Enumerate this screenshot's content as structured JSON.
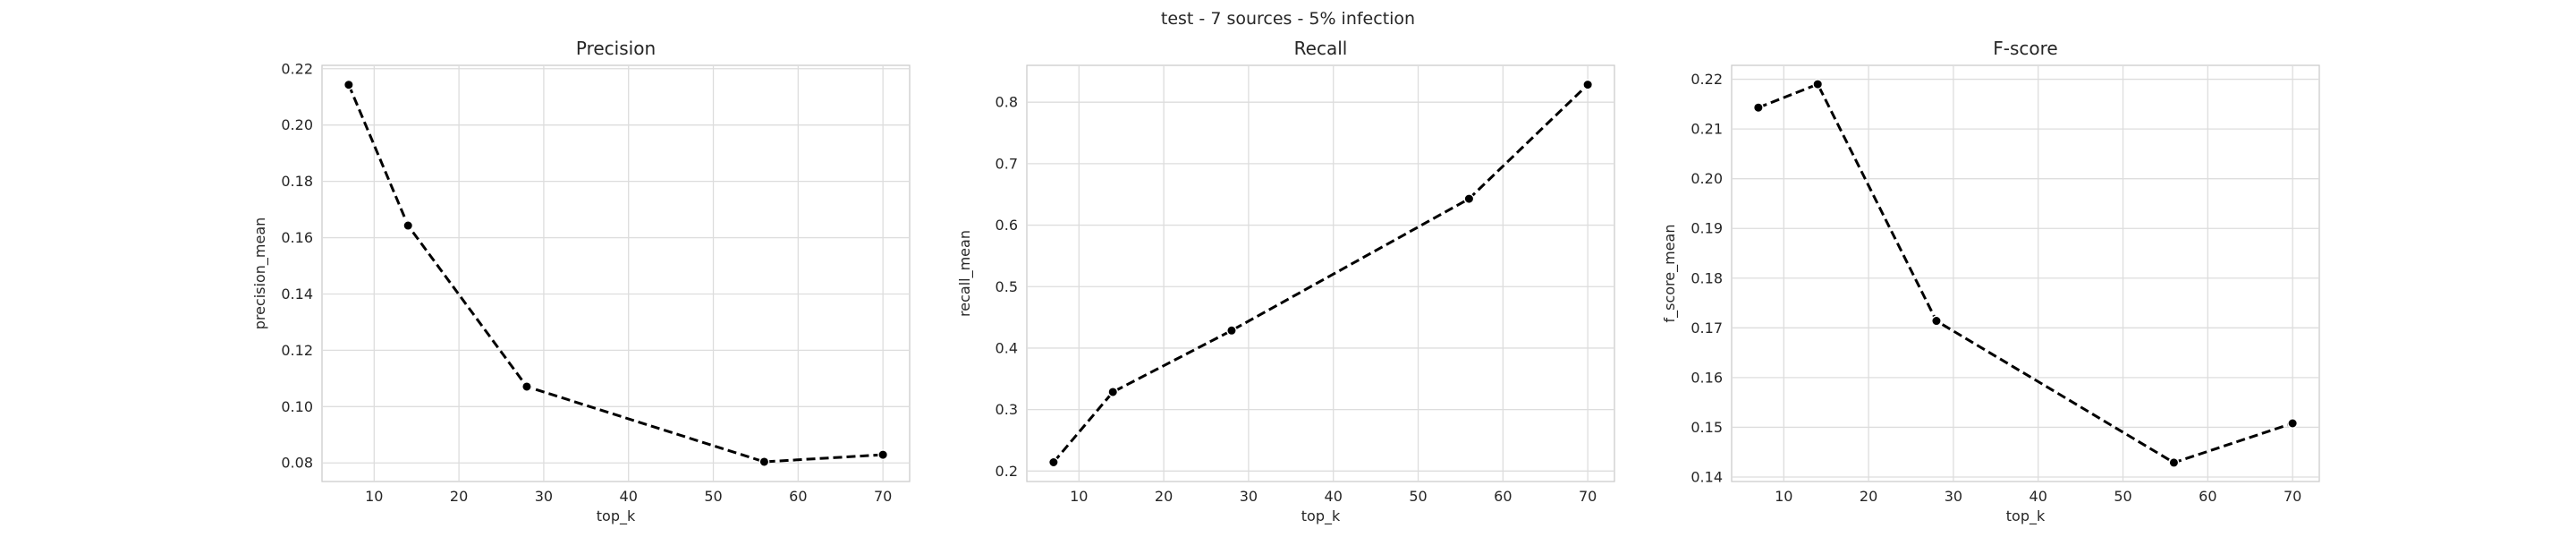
{
  "figure": {
    "suptitle": "test - 7 sources - 5% infection"
  },
  "chart_data": [
    {
      "type": "line",
      "title": "Precision",
      "xlabel": "top_k",
      "ylabel": "precision_mean",
      "x": [
        7,
        14,
        28,
        56,
        70
      ],
      "values": [
        0.2143,
        0.1643,
        0.1071,
        0.0804,
        0.0829
      ],
      "xlim": [
        3.85,
        73.15
      ],
      "ylim": [
        0.0734,
        0.2212
      ],
      "xticks": [
        10,
        20,
        30,
        40,
        50,
        60,
        70
      ],
      "yticks": [
        0.08,
        0.1,
        0.12,
        0.14,
        0.16,
        0.18,
        0.2,
        0.22
      ],
      "xtick_labels": [
        "10",
        "20",
        "30",
        "40",
        "50",
        "60",
        "70"
      ],
      "ytick_labels": [
        "0.08",
        "0.10",
        "0.12",
        "0.14",
        "0.16",
        "0.18",
        "0.20",
        "0.22"
      ],
      "grid": true,
      "line_style": "dashed",
      "line_color": "#000000",
      "marker": "circle"
    },
    {
      "type": "line",
      "title": "Recall",
      "xlabel": "top_k",
      "ylabel": "recall_mean",
      "x": [
        7,
        14,
        28,
        56,
        70
      ],
      "values": [
        0.2143,
        0.3286,
        0.4286,
        0.6429,
        0.8286
      ],
      "xlim": [
        3.85,
        73.15
      ],
      "ylim": [
        0.183,
        0.86
      ],
      "xticks": [
        10,
        20,
        30,
        40,
        50,
        60,
        70
      ],
      "yticks": [
        0.2,
        0.3,
        0.4,
        0.5,
        0.6,
        0.7,
        0.8
      ],
      "xtick_labels": [
        "10",
        "20",
        "30",
        "40",
        "50",
        "60",
        "70"
      ],
      "ytick_labels": [
        "0.2",
        "0.3",
        "0.4",
        "0.5",
        "0.6",
        "0.7",
        "0.8"
      ],
      "grid": true,
      "line_style": "dashed",
      "line_color": "#000000",
      "marker": "circle"
    },
    {
      "type": "line",
      "title": "F-score",
      "xlabel": "top_k",
      "ylabel": "f_score_mean",
      "x": [
        7,
        14,
        28,
        56,
        70
      ],
      "values": [
        0.2143,
        0.219,
        0.1714,
        0.1429,
        0.1508
      ],
      "xlim": [
        3.85,
        73.15
      ],
      "ylim": [
        0.1391,
        0.2228
      ],
      "xticks": [
        10,
        20,
        30,
        40,
        50,
        60,
        70
      ],
      "yticks": [
        0.14,
        0.15,
        0.16,
        0.17,
        0.18,
        0.19,
        0.2,
        0.21,
        0.22
      ],
      "xtick_labels": [
        "10",
        "20",
        "30",
        "40",
        "50",
        "60",
        "70"
      ],
      "ytick_labels": [
        "0.14",
        "0.15",
        "0.16",
        "0.17",
        "0.18",
        "0.19",
        "0.20",
        "0.21",
        "0.22"
      ],
      "grid": true,
      "line_style": "dashed",
      "line_color": "#000000",
      "marker": "circle"
    }
  ]
}
